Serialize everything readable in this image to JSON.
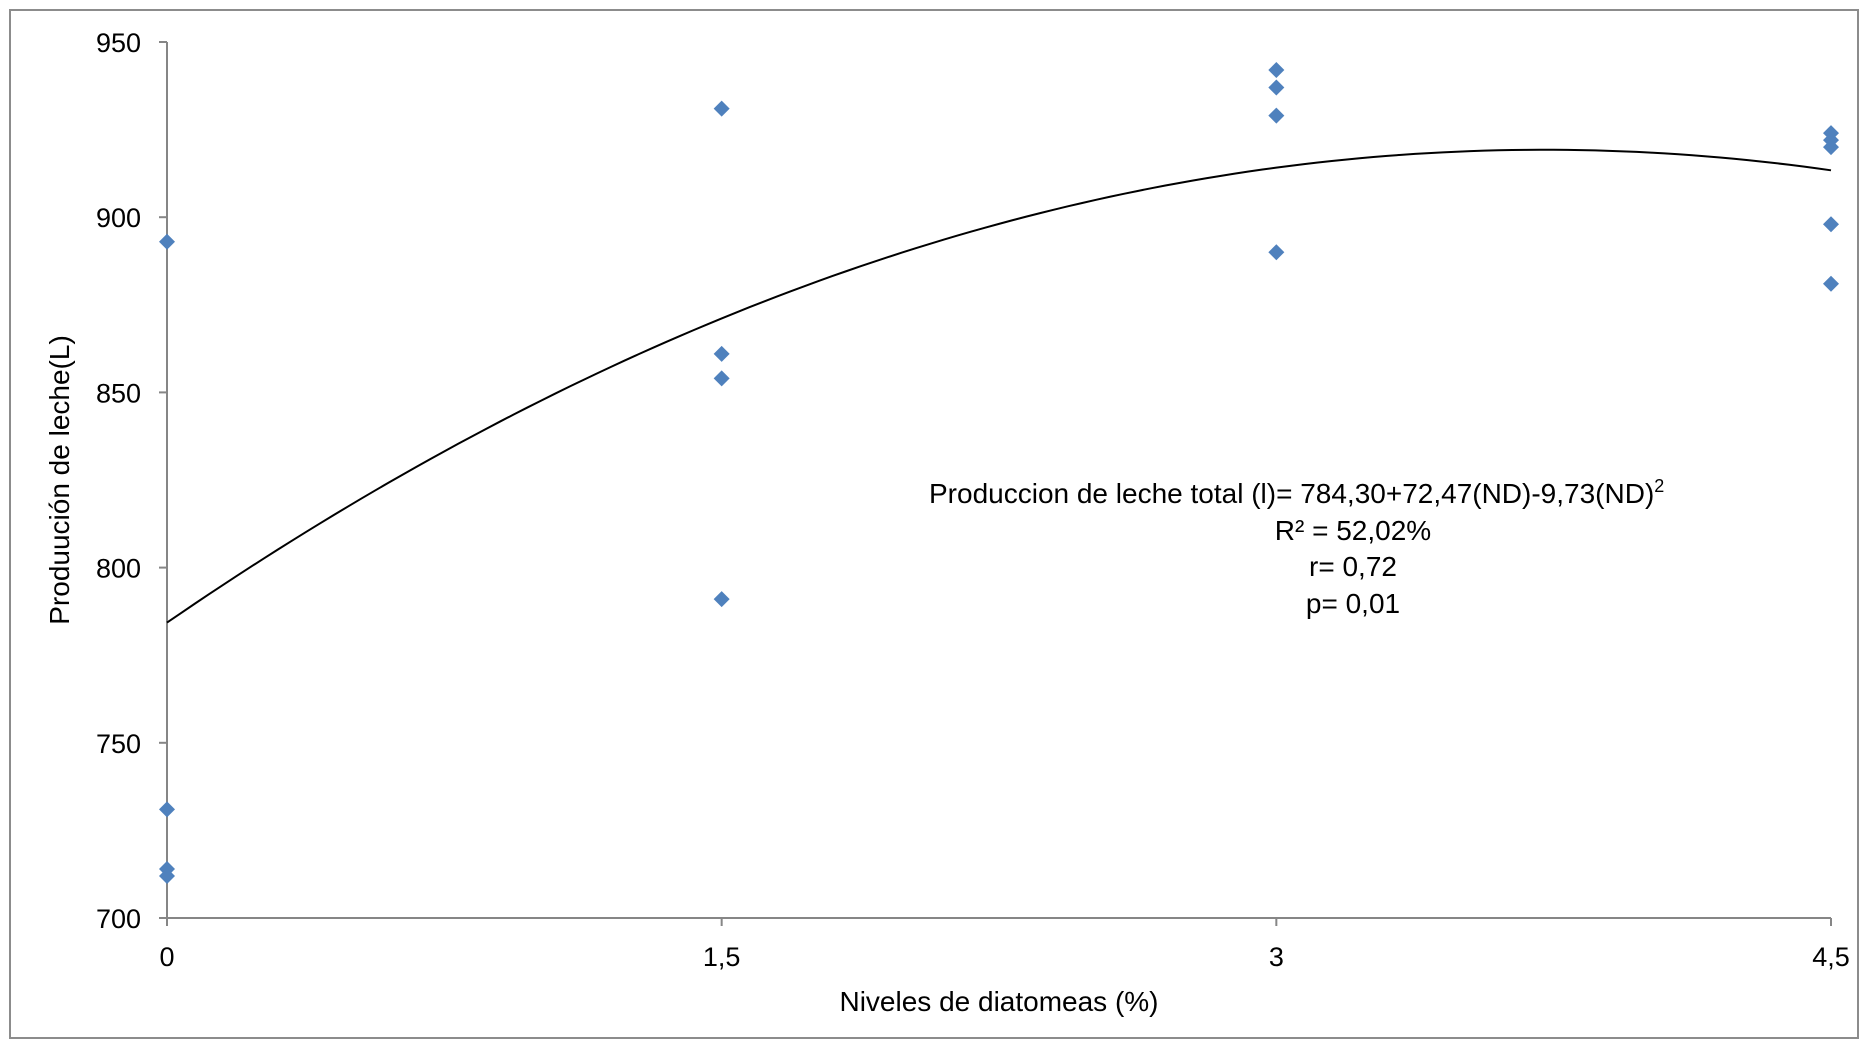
{
  "chart_data": {
    "type": "scatter",
    "title": "",
    "xlabel": "Niveles de diatomeas (%)",
    "ylabel": "Produución de leche(L)",
    "xlim": [
      0,
      4.5
    ],
    "ylim": [
      700,
      950
    ],
    "x_ticks": [
      "0",
      "1,5",
      "3",
      "4,5"
    ],
    "x_tick_values": [
      0,
      1.5,
      3,
      4.5
    ],
    "y_ticks": [
      "700",
      "750",
      "800",
      "850",
      "900",
      "950"
    ],
    "y_tick_values": [
      700,
      750,
      800,
      850,
      900,
      950
    ],
    "grid": false,
    "marker_color": "#4f81bd",
    "line_color": "#000000",
    "points": [
      {
        "x": 0,
        "y": 893
      },
      {
        "x": 0,
        "y": 731
      },
      {
        "x": 0,
        "y": 714
      },
      {
        "x": 0,
        "y": 712
      },
      {
        "x": 1.5,
        "y": 931
      },
      {
        "x": 1.5,
        "y": 861
      },
      {
        "x": 1.5,
        "y": 854
      },
      {
        "x": 1.5,
        "y": 791
      },
      {
        "x": 3,
        "y": 942
      },
      {
        "x": 3,
        "y": 937
      },
      {
        "x": 3,
        "y": 929
      },
      {
        "x": 3,
        "y": 890
      },
      {
        "x": 4.5,
        "y": 924
      },
      {
        "x": 4.5,
        "y": 922
      },
      {
        "x": 4.5,
        "y": 920
      },
      {
        "x": 4.5,
        "y": 898
      },
      {
        "x": 4.5,
        "y": 881
      }
    ],
    "trendline": {
      "type": "polynomial",
      "intercept": 784.3,
      "b1": 72.47,
      "b2": -9.73
    },
    "annotation": {
      "equation_main": "Produccion de leche total (l)=  784,30+72,47(ND)-9,73(ND)",
      "equation_sup": "2",
      "r2": "R² = 52,02%",
      "r": "r= 0,72",
      "p": "p= 0,01"
    }
  }
}
